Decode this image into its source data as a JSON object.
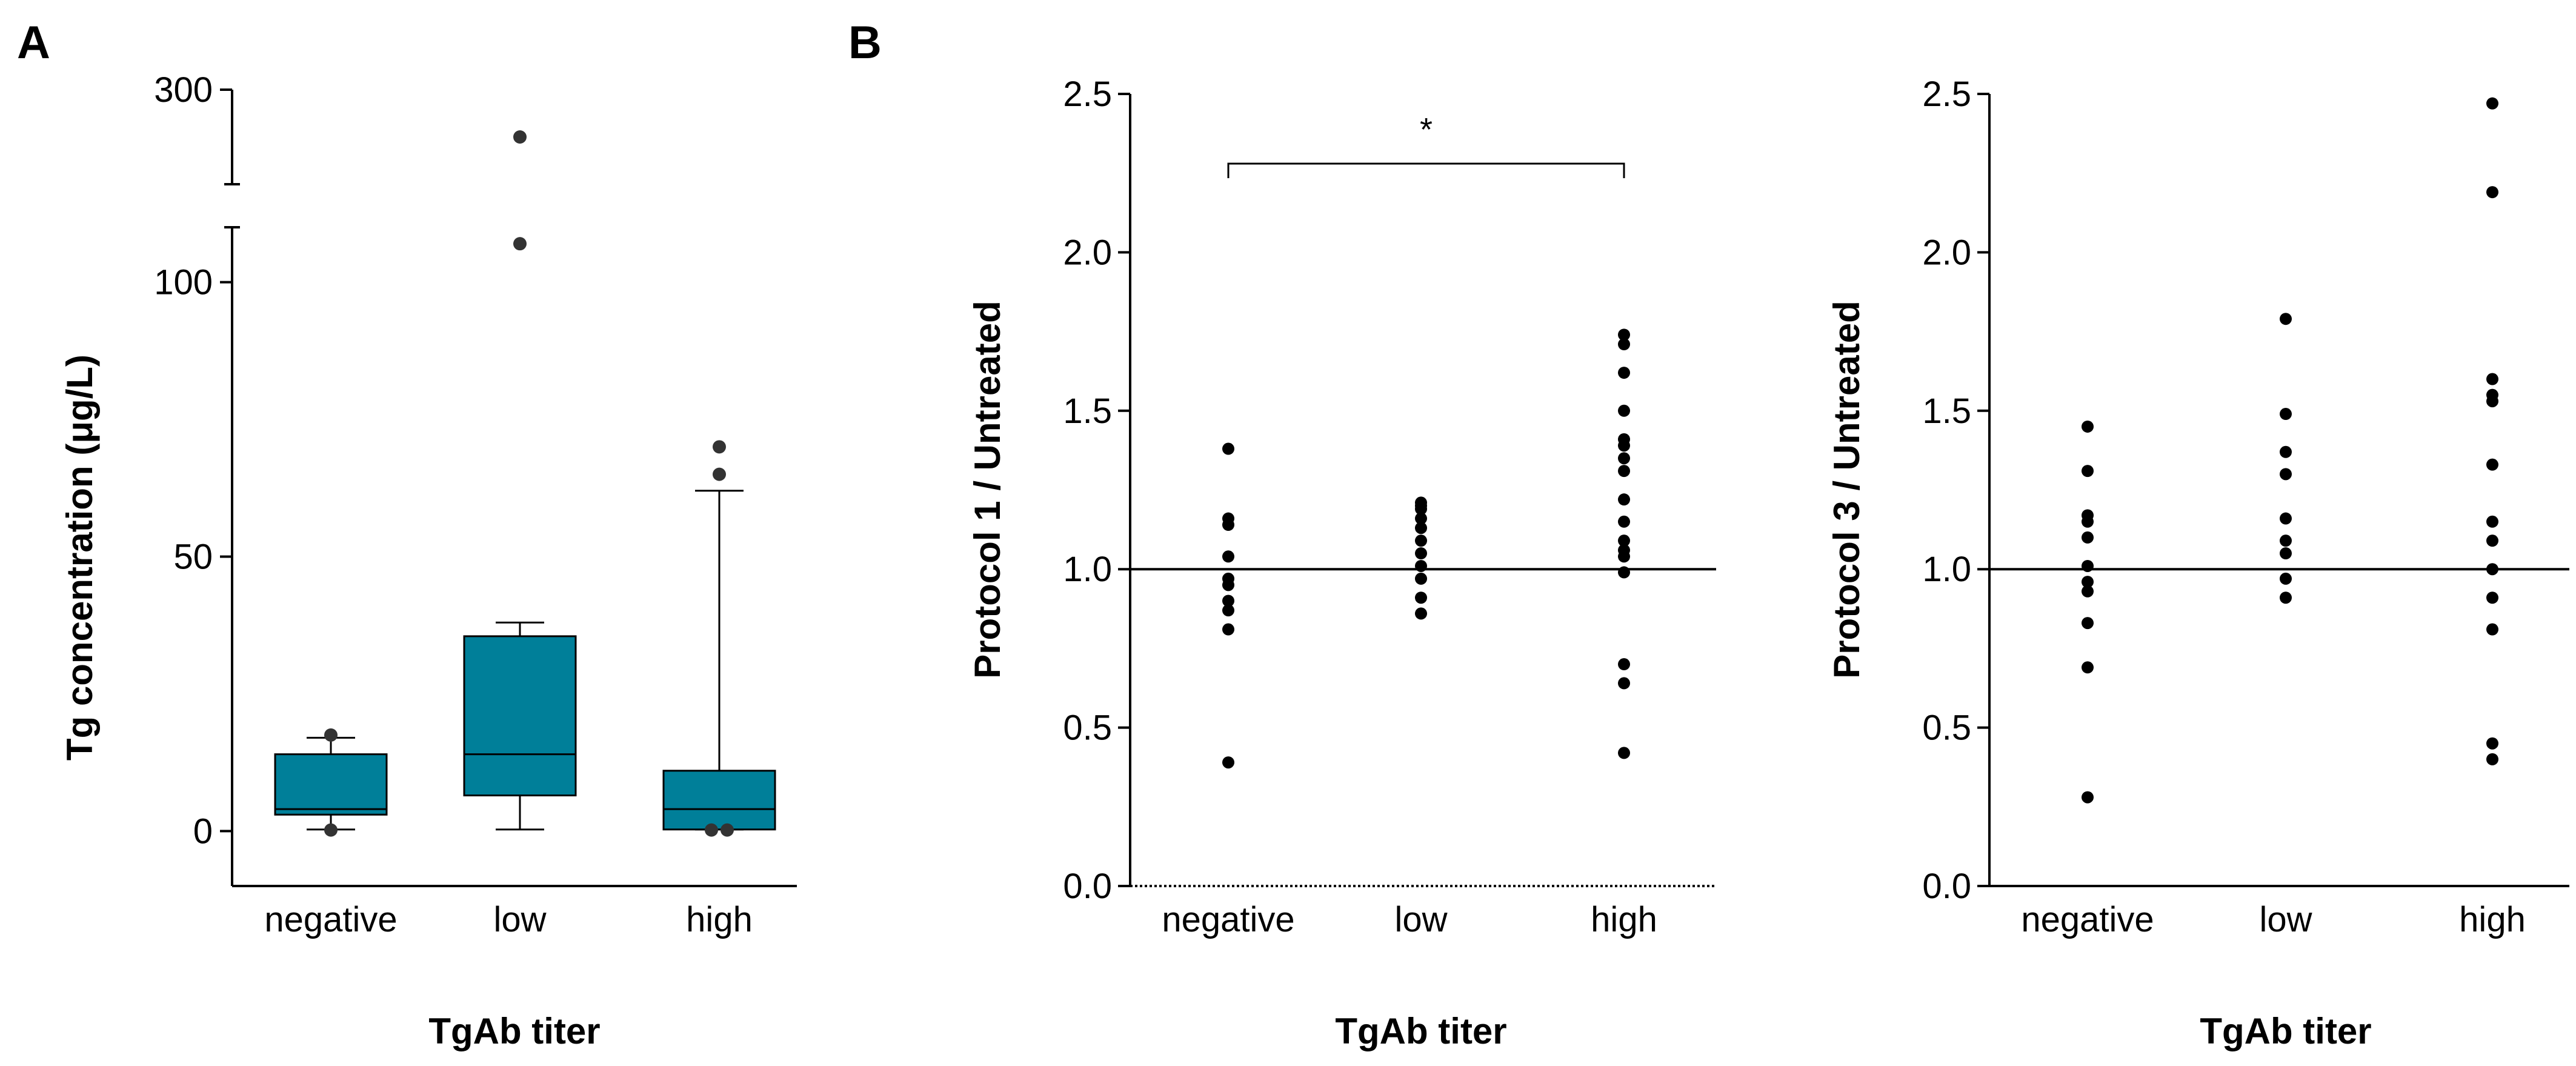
{
  "panel_labels": {
    "a": "A",
    "b": "B"
  },
  "colors": {
    "box_fill": "#007f99",
    "marker": "#000000",
    "box_outlier": "#333333"
  },
  "chart_data": [
    {
      "id": "A",
      "type": "box",
      "title": "",
      "xlabel": "TgAb titer",
      "ylabel": "Tg concentration (μg/L)",
      "categories": [
        "negative",
        "low",
        "high"
      ],
      "y_axis_break": true,
      "ylim_lower": [
        -10,
        110
      ],
      "ylim_upper": [
        250,
        300
      ],
      "ticks_lower": [
        "0",
        "50",
        "100"
      ],
      "tick_values_lower": [
        0,
        50,
        100
      ],
      "ticks_upper": [
        "300"
      ],
      "tick_values_upper": [
        300
      ],
      "boxes": [
        {
          "category": "negative",
          "whisker_low": 0.3,
          "q1": 3,
          "median": 4,
          "q3": 14,
          "whisker_high": 17,
          "outliers": [
            0.2,
            17.5
          ]
        },
        {
          "category": "low",
          "whisker_low": 0.3,
          "q1": 6.5,
          "median": 14,
          "q3": 35.5,
          "whisker_high": 38,
          "outliers": [
            107,
            275
          ]
        },
        {
          "category": "high",
          "whisker_low": 0.3,
          "q1": 0.3,
          "median": 4,
          "q3": 11,
          "whisker_high": 62,
          "outliers": [
            0.2,
            0.2,
            65,
            70
          ]
        }
      ]
    },
    {
      "id": "B1",
      "type": "scatter",
      "title": "",
      "xlabel": "TgAb titer",
      "ylabel": "Protocol 1 / Untreated",
      "categories": [
        "negative",
        "low",
        "high"
      ],
      "ylim": [
        0,
        2.5
      ],
      "ticks": [
        "0.0",
        "0.5",
        "1.0",
        "1.5",
        "2.0",
        "2.5"
      ],
      "tick_values": [
        0,
        0.5,
        1.0,
        1.5,
        2.0,
        2.5
      ],
      "reference_line": 1.0,
      "significance": {
        "from": "negative",
        "to": "high",
        "label": "*",
        "y": 2.28
      },
      "series": [
        {
          "name": "negative",
          "values": [
            1.38,
            1.16,
            1.14,
            1.04,
            0.97,
            0.95,
            0.9,
            0.87,
            0.81,
            0.39
          ]
        },
        {
          "name": "low",
          "values": [
            1.21,
            1.2,
            1.19,
            1.16,
            1.13,
            1.09,
            1.05,
            1.01,
            0.97,
            0.91,
            0.86
          ]
        },
        {
          "name": "high",
          "values": [
            1.74,
            1.71,
            1.62,
            1.5,
            1.41,
            1.39,
            1.35,
            1.31,
            1.22,
            1.15,
            1.09,
            1.06,
            1.04,
            0.99,
            0.7,
            0.64,
            0.42
          ]
        }
      ]
    },
    {
      "id": "B2",
      "type": "scatter",
      "title": "",
      "xlabel": "TgAb titer",
      "ylabel": "Protocol 3 / Untreated",
      "categories": [
        "negative",
        "low",
        "high"
      ],
      "ylim": [
        0,
        2.5
      ],
      "ticks": [
        "0.0",
        "0.5",
        "1.0",
        "1.5",
        "2.0",
        "2.5"
      ],
      "tick_values": [
        0,
        0.5,
        1.0,
        1.5,
        2.0,
        2.5
      ],
      "reference_line": 1.0,
      "series": [
        {
          "name": "negative",
          "values": [
            1.45,
            1.31,
            1.17,
            1.15,
            1.1,
            1.01,
            0.96,
            0.93,
            0.83,
            0.69,
            0.28
          ]
        },
        {
          "name": "low",
          "values": [
            1.79,
            1.49,
            1.37,
            1.3,
            1.16,
            1.09,
            1.05,
            0.97,
            0.91
          ]
        },
        {
          "name": "high",
          "values": [
            2.47,
            2.19,
            1.6,
            1.55,
            1.53,
            1.33,
            1.15,
            1.09,
            1.0,
            0.91,
            0.81,
            0.45,
            0.4
          ]
        }
      ]
    }
  ]
}
